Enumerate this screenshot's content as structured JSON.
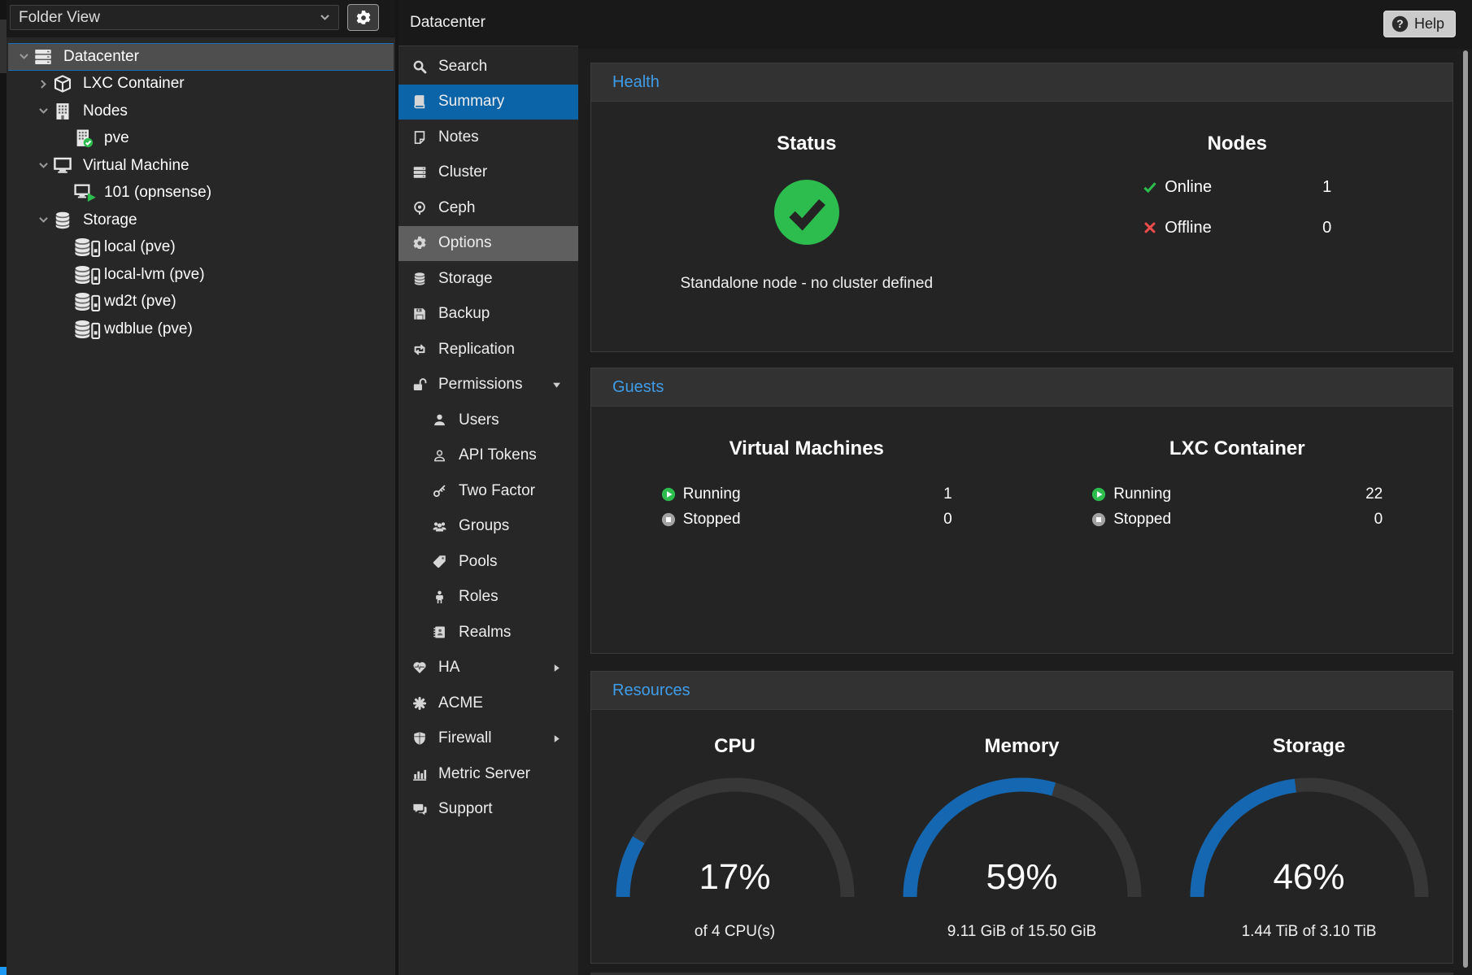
{
  "app": {
    "help_label": "Help"
  },
  "tree_panel": {
    "view_selector": {
      "value": "Folder View"
    },
    "items": [
      {
        "label": "Datacenter",
        "icon": "server-stack",
        "level": 0,
        "expand": "expanded",
        "state": "selected"
      },
      {
        "label": "LXC Container",
        "icon": "cube",
        "level": 1,
        "expand": "collapsed",
        "state": "normal"
      },
      {
        "label": "Nodes",
        "icon": "building",
        "level": 1,
        "expand": "expanded",
        "state": "normal"
      },
      {
        "label": "pve",
        "icon": "building-online",
        "level": 2,
        "expand": "none",
        "state": "normal"
      },
      {
        "label": "Virtual Machine",
        "icon": "monitor",
        "level": 1,
        "expand": "expanded",
        "state": "normal"
      },
      {
        "label": "101 (opnsense)",
        "icon": "monitor-running",
        "level": 2,
        "expand": "none",
        "state": "normal"
      },
      {
        "label": "Storage",
        "icon": "database",
        "level": 1,
        "expand": "expanded",
        "state": "normal"
      },
      {
        "label": "local (pve)",
        "icon": "database-drive",
        "level": 2,
        "expand": "none",
        "state": "normal"
      },
      {
        "label": "local-lvm (pve)",
        "icon": "database-drive",
        "level": 2,
        "expand": "none",
        "state": "normal"
      },
      {
        "label": "wd2t (pve)",
        "icon": "database-drive",
        "level": 2,
        "expand": "none",
        "state": "normal"
      },
      {
        "label": "wdblue (pve)",
        "icon": "database-drive",
        "level": 2,
        "expand": "none",
        "state": "normal"
      }
    ]
  },
  "nav": {
    "title": "Datacenter",
    "items": [
      {
        "label": "Search",
        "icon": "search",
        "state": "normal",
        "level": 0,
        "arrow": "none"
      },
      {
        "label": "Summary",
        "icon": "book",
        "state": "selected",
        "level": 0,
        "arrow": "none"
      },
      {
        "label": "Notes",
        "icon": "note",
        "state": "normal",
        "level": 0,
        "arrow": "none"
      },
      {
        "label": "Cluster",
        "icon": "server-stack",
        "state": "normal",
        "level": 0,
        "arrow": "none"
      },
      {
        "label": "Ceph",
        "icon": "ceph",
        "state": "normal",
        "level": 0,
        "arrow": "none"
      },
      {
        "label": "Options",
        "icon": "gear",
        "state": "hover",
        "level": 0,
        "arrow": "none"
      },
      {
        "label": "Storage",
        "icon": "database",
        "state": "normal",
        "level": 0,
        "arrow": "none"
      },
      {
        "label": "Backup",
        "icon": "floppy",
        "state": "normal",
        "level": 0,
        "arrow": "none"
      },
      {
        "label": "Replication",
        "icon": "replication",
        "state": "normal",
        "level": 0,
        "arrow": "none"
      },
      {
        "label": "Permissions",
        "icon": "unlock",
        "state": "normal",
        "level": 0,
        "arrow": "down"
      },
      {
        "label": "Users",
        "icon": "user",
        "state": "normal",
        "level": 1,
        "arrow": "none"
      },
      {
        "label": "API Tokens",
        "icon": "user-outline",
        "state": "normal",
        "level": 1,
        "arrow": "none"
      },
      {
        "label": "Two Factor",
        "icon": "key",
        "state": "normal",
        "level": 1,
        "arrow": "none"
      },
      {
        "label": "Groups",
        "icon": "user-group",
        "state": "normal",
        "level": 1,
        "arrow": "none"
      },
      {
        "label": "Pools",
        "icon": "tag",
        "state": "normal",
        "level": 1,
        "arrow": "none"
      },
      {
        "label": "Roles",
        "icon": "person",
        "state": "normal",
        "level": 1,
        "arrow": "none"
      },
      {
        "label": "Realms",
        "icon": "address-book",
        "state": "normal",
        "level": 1,
        "arrow": "none"
      },
      {
        "label": "HA",
        "icon": "heartbeat",
        "state": "normal",
        "level": 0,
        "arrow": "right"
      },
      {
        "label": "ACME",
        "icon": "burst",
        "state": "normal",
        "level": 0,
        "arrow": "none"
      },
      {
        "label": "Firewall",
        "icon": "shield",
        "state": "normal",
        "level": 0,
        "arrow": "right"
      },
      {
        "label": "Metric Server",
        "icon": "bar-chart",
        "state": "normal",
        "level": 0,
        "arrow": "none"
      },
      {
        "label": "Support",
        "icon": "comments",
        "state": "normal",
        "level": 0,
        "arrow": "none"
      }
    ]
  },
  "health": {
    "title": "Health",
    "status_header": "Status",
    "status_caption": "Standalone node - no cluster defined",
    "nodes_header": "Nodes",
    "rows": [
      {
        "label": "Online",
        "value": "1"
      },
      {
        "label": "Offline",
        "value": "0"
      }
    ]
  },
  "guests": {
    "title": "Guests",
    "columns": [
      {
        "header": "Virtual Machines",
        "rows": [
          {
            "label": "Running",
            "value": "1"
          },
          {
            "label": "Stopped",
            "value": "0"
          }
        ]
      },
      {
        "header": "LXC Container",
        "rows": [
          {
            "label": "Running",
            "value": "22"
          },
          {
            "label": "Stopped",
            "value": "0"
          }
        ]
      }
    ]
  },
  "resources": {
    "title": "Resources",
    "gauges": [
      {
        "title": "CPU",
        "percent": 17,
        "percent_label": "17%",
        "caption": "of 4 CPU(s)"
      },
      {
        "title": "Memory",
        "percent": 59,
        "percent_label": "59%",
        "caption": "9.11 GiB of 15.50 GiB"
      },
      {
        "title": "Storage",
        "percent": 46,
        "percent_label": "46%",
        "caption": "1.44 TiB of 3.10 TiB"
      }
    ]
  },
  "colors": {
    "gauge_fill": "#1467b0",
    "selection_blue": "#0c64a8",
    "heading_blue": "#3f9ce8",
    "ok_green": "#2dbd4e",
    "error_red": "#ee4b4b"
  }
}
